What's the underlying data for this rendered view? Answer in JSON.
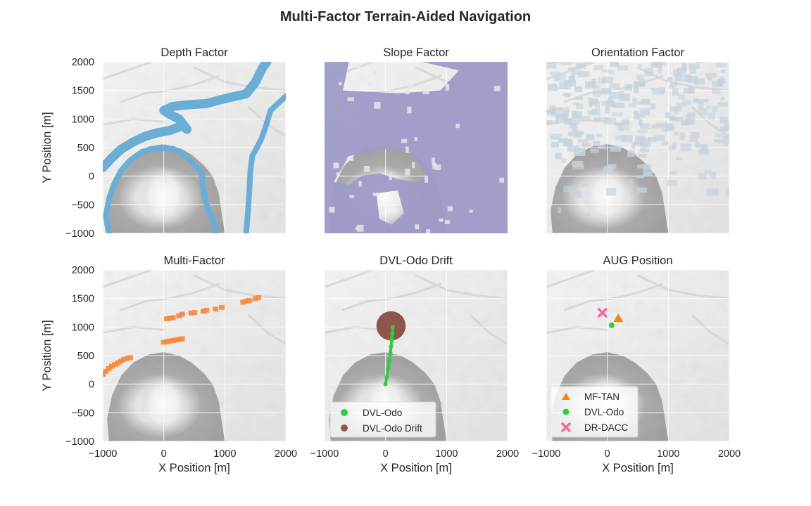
{
  "chart_data": {
    "type": "scatter",
    "title": "Multi-Factor Terrain-Aided Navigation",
    "xlabel": "X Position [m]",
    "ylabel": "Y Position [m]",
    "xlim": [
      -1000,
      2000
    ],
    "ylim": [
      -1000,
      2000
    ],
    "xticks": [
      -1000,
      0,
      1000,
      2000
    ],
    "yticks": [
      -1000,
      -500,
      0,
      500,
      1000,
      1500,
      2000
    ],
    "xtick_labels": [
      "−1000",
      "0",
      "1000",
      "2000"
    ],
    "ytick_labels": [
      "−1000",
      "−500",
      "0",
      "500",
      "1000",
      "1500",
      "2000"
    ],
    "grid": true,
    "colors": {
      "depth": "#6aaed6",
      "slope": "#9e9ac8",
      "orientation": "#c6d3dc",
      "multi": "#f58a3c",
      "dvl_odo": "#2ecc40",
      "dvl_drift": "#8c564b",
      "mf_tan": "#ff7f0e",
      "dr_dacc": "#f768a1"
    },
    "panels": [
      {
        "title": "Depth Factor",
        "contours": [
          [
            [
              -1000,
              150
            ],
            [
              -850,
              320
            ],
            [
              -700,
              470
            ],
            [
              -500,
              600
            ],
            [
              -300,
              700
            ],
            [
              -100,
              760
            ],
            [
              100,
              800
            ],
            [
              300,
              880
            ],
            [
              380,
              820
            ],
            [
              250,
              1000
            ],
            [
              100,
              1080
            ],
            [
              0,
              1150
            ],
            [
              150,
              1220
            ],
            [
              400,
              1250
            ],
            [
              700,
              1270
            ],
            [
              900,
              1330
            ],
            [
              1100,
              1380
            ],
            [
              1350,
              1440
            ],
            [
              1500,
              1640
            ],
            [
              1620,
              1900
            ],
            [
              1690,
              2000
            ]
          ],
          [
            [
              -900,
              -1000
            ],
            [
              -950,
              -700
            ],
            [
              -900,
              -400
            ],
            [
              -820,
              -150
            ],
            [
              -700,
              100
            ],
            [
              -550,
              280
            ],
            [
              -350,
              430
            ],
            [
              -100,
              490
            ],
            [
              150,
              480
            ],
            [
              300,
              400
            ],
            [
              450,
              260
            ],
            [
              620,
              60
            ],
            [
              650,
              -250
            ],
            [
              700,
              -500
            ],
            [
              800,
              -750
            ],
            [
              850,
              -1000
            ]
          ],
          [
            [
              1350,
              -1000
            ],
            [
              1380,
              -600
            ],
            [
              1400,
              -300
            ],
            [
              1420,
              100
            ],
            [
              1450,
              350
            ],
            [
              1500,
              450
            ],
            [
              1600,
              650
            ],
            [
              1680,
              900
            ],
            [
              1750,
              1150
            ],
            [
              1950,
              1350
            ],
            [
              2000,
              1400
            ]
          ]
        ]
      },
      {
        "title": "Slope Factor"
      },
      {
        "title": "Orientation Factor"
      },
      {
        "title": "Multi-Factor",
        "points": [
          [
            -1000,
            180
          ],
          [
            -950,
            230
          ],
          [
            -900,
            280
          ],
          [
            -850,
            320
          ],
          [
            -800,
            350
          ],
          [
            -750,
            380
          ],
          [
            -700,
            410
          ],
          [
            -650,
            440
          ],
          [
            -600,
            460
          ],
          [
            -550,
            470
          ],
          [
            0,
            740
          ],
          [
            50,
            750
          ],
          [
            100,
            760
          ],
          [
            150,
            770
          ],
          [
            200,
            780
          ],
          [
            250,
            790
          ],
          [
            300,
            800
          ],
          [
            50,
            1150
          ],
          [
            100,
            1160
          ],
          [
            150,
            1170
          ],
          [
            250,
            1200
          ],
          [
            300,
            1230
          ],
          [
            450,
            1250
          ],
          [
            500,
            1260
          ],
          [
            650,
            1280
          ],
          [
            700,
            1300
          ],
          [
            850,
            1320
          ],
          [
            950,
            1350
          ],
          [
            1300,
            1440
          ],
          [
            1350,
            1460
          ],
          [
            1400,
            1470
          ],
          [
            1500,
            1500
          ],
          [
            1550,
            1520
          ]
        ]
      },
      {
        "title": "DVL-Odo Drift",
        "odo_track": [
          [
            0,
            0
          ],
          [
            20,
            120
          ],
          [
            40,
            260
          ],
          [
            60,
            400
          ],
          [
            80,
            540
          ],
          [
            90,
            660
          ],
          [
            100,
            780
          ],
          [
            110,
            880
          ],
          [
            120,
            1000
          ]
        ],
        "drift_center": [
          90,
          1020
        ],
        "drift_radius_m": 240,
        "legend": [
          "DVL-Odo",
          "DVL-Odo Drift"
        ]
      },
      {
        "title": "AUG Position",
        "mf_tan": [
          180,
          1150
        ],
        "dvl_odo": [
          70,
          1030
        ],
        "dr_dacc": [
          -80,
          1250
        ],
        "legend": [
          "MF-TAN",
          "DVL-Odo",
          "DR-DACC"
        ]
      }
    ]
  }
}
